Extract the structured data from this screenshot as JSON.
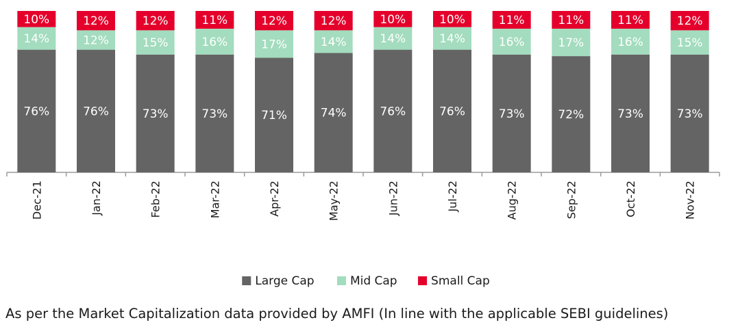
{
  "chart_data": {
    "type": "bar",
    "stacked": true,
    "normalized_percent": true,
    "categories": [
      "Dec-21",
      "Jan-22",
      "Feb-22",
      "Mar-22",
      "Apr-22",
      "May-22",
      "Jun-22",
      "Jul-22",
      "Aug-22",
      "Sep-22",
      "Oct-22",
      "Nov-22"
    ],
    "series": [
      {
        "name": "Large Cap",
        "color": "#646464",
        "values": [
          76,
          76,
          73,
          73,
          71,
          74,
          76,
          76,
          73,
          72,
          73,
          73
        ]
      },
      {
        "name": "Mid Cap",
        "color": "#a3dcbe",
        "values": [
          14,
          12,
          15,
          16,
          17,
          14,
          14,
          14,
          16,
          17,
          16,
          15
        ]
      },
      {
        "name": "Small Cap",
        "color": "#e4002b",
        "values": [
          10,
          12,
          12,
          11,
          12,
          12,
          10,
          10,
          11,
          11,
          11,
          12
        ]
      }
    ],
    "label_suffix": "%",
    "label_colors": [
      "#ffffff",
      "#ffffff",
      "#ffffff"
    ],
    "title": "",
    "xlabel": "",
    "ylabel": "",
    "y_axis_visible": false,
    "grid": false,
    "legend_position": "bottom"
  },
  "footnote": "As per the Market Capitalization data provided by AMFI (In line with the applicable SEBI guidelines)"
}
